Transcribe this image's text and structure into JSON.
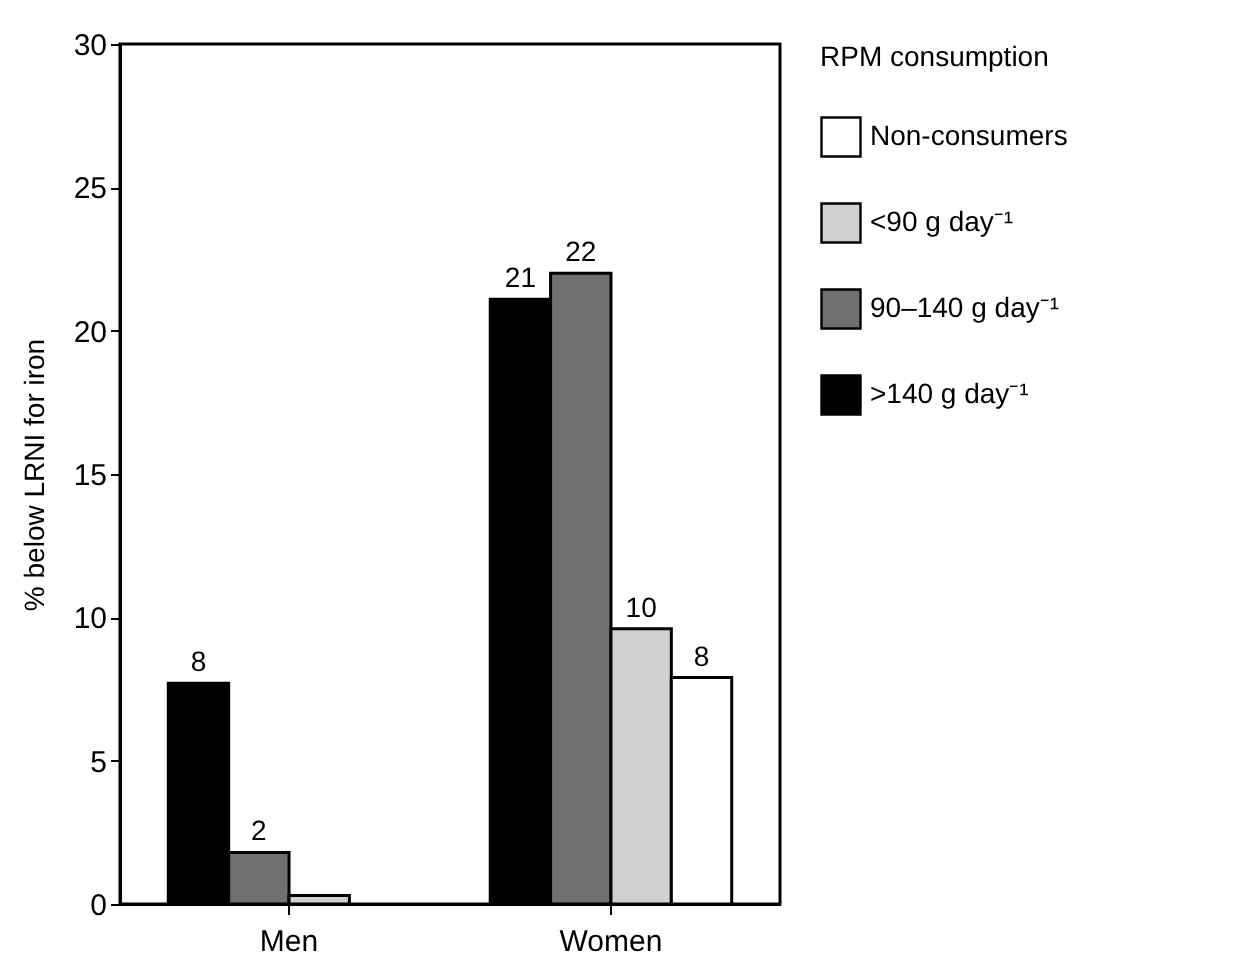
{
  "chart_data": {
    "type": "bar",
    "ylabel": "% below LRNI for iron",
    "legend_title": "RPM consumption",
    "categories": [
      "Men",
      "Women"
    ],
    "series": [
      {
        "name": ">140 g day⁻¹",
        "color": "#000000",
        "values": [
          7.7,
          21.1
        ],
        "value_labels": [
          "8",
          "21"
        ]
      },
      {
        "name": "90–140 g day⁻¹",
        "color": "#707070",
        "values": [
          1.8,
          22.0
        ],
        "value_labels": [
          "2",
          "22"
        ]
      },
      {
        "name": "<90 g day⁻¹",
        "color": "#d0d0d0",
        "values": [
          0.3,
          9.6
        ],
        "value_labels": [
          null,
          "10"
        ]
      },
      {
        "name": "Non-consumers",
        "color": "#ffffff",
        "values": [
          null,
          7.9
        ],
        "value_labels": [
          null,
          "8"
        ]
      }
    ],
    "ylim": [
      0,
      30
    ],
    "yticks": [
      0,
      5,
      10,
      15,
      20,
      25,
      30
    ],
    "grid": false,
    "legend": "right"
  }
}
